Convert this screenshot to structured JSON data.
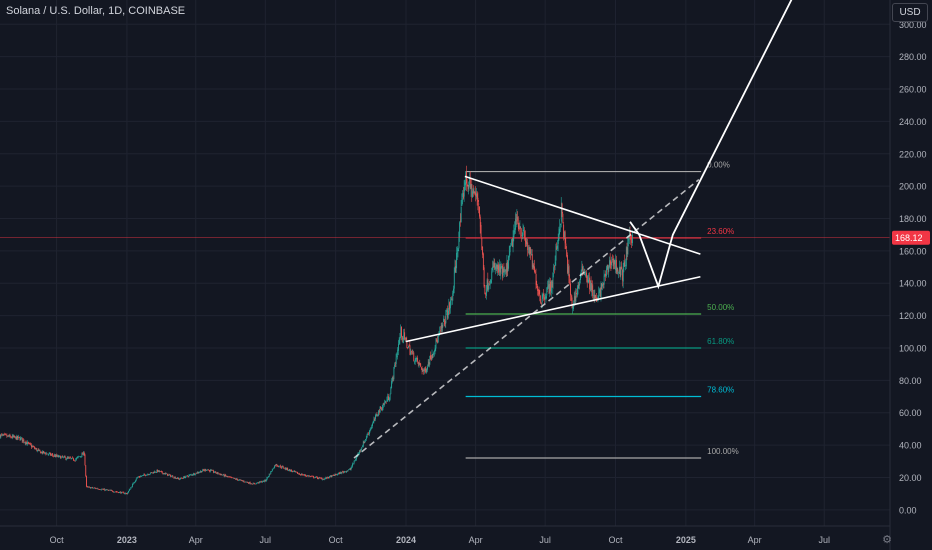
{
  "header": {
    "symbol": "Solana / U.S. Dollar, 1D, COINBASE",
    "currency": "USD"
  },
  "icons": {
    "scale_settings": "gear-icon"
  },
  "colors": {
    "background": "#131722",
    "grid": "#1f2330",
    "axis_text": "#b2b5be",
    "candle_up": "#26a69a",
    "candle_down": "#ef5350",
    "price_line": "#f23645",
    "drawing": "#ffffff"
  },
  "chart_data": {
    "type": "candlestick",
    "y_axis": {
      "ticks": [
        "0.00",
        "20.00",
        "40.00",
        "60.00",
        "80.00",
        "100.00",
        "120.00",
        "140.00",
        "160.00",
        "180.00",
        "200.00",
        "220.00",
        "240.00",
        "260.00",
        "280.00",
        "300.00"
      ],
      "tick_values": [
        0,
        20,
        40,
        60,
        80,
        100,
        120,
        140,
        160,
        180,
        200,
        220,
        240,
        260,
        280,
        300
      ],
      "range": [
        -10,
        315
      ]
    },
    "x_axis": {
      "ticks": [
        "Oct",
        "2023",
        "Apr",
        "Jul",
        "Oct",
        "2024",
        "Apr",
        "Jul",
        "Oct",
        "2025",
        "Apr",
        "Jul"
      ],
      "tick_dates": [
        "2022-10-01",
        "2023-01-01",
        "2023-04-01",
        "2023-07-01",
        "2023-10-01",
        "2024-01-01",
        "2024-04-01",
        "2024-07-01",
        "2024-10-01",
        "2025-01-01",
        "2025-04-01",
        "2025-07-01"
      ],
      "range": [
        "2022-07-19",
        "2025-09-25"
      ]
    },
    "current_price": {
      "value": 168.12,
      "label": "168.12"
    },
    "price_path": [
      [
        "2022-07-19",
        46
      ],
      [
        "2022-08-15",
        44
      ],
      [
        "2022-09-08",
        36
      ],
      [
        "2022-10-01",
        33
      ],
      [
        "2022-10-25",
        31
      ],
      [
        "2022-11-06",
        35
      ],
      [
        "2022-11-09",
        14
      ],
      [
        "2022-11-25",
        13
      ],
      [
        "2022-12-20",
        11
      ],
      [
        "2023-01-01",
        10
      ],
      [
        "2023-01-14",
        20
      ],
      [
        "2023-02-10",
        24
      ],
      [
        "2023-03-10",
        19
      ],
      [
        "2023-04-15",
        25
      ],
      [
        "2023-05-15",
        20
      ],
      [
        "2023-06-15",
        16
      ],
      [
        "2023-07-01",
        18
      ],
      [
        "2023-07-14",
        28
      ],
      [
        "2023-08-15",
        22
      ],
      [
        "2023-09-15",
        19
      ],
      [
        "2023-10-20",
        25
      ],
      [
        "2023-11-05",
        40
      ],
      [
        "2023-11-25",
        60
      ],
      [
        "2023-12-10",
        70
      ],
      [
        "2023-12-25",
        110
      ],
      [
        "2024-01-10",
        95
      ],
      [
        "2024-01-25",
        85
      ],
      [
        "2024-02-15",
        110
      ],
      [
        "2024-03-01",
        130
      ],
      [
        "2024-03-18",
        205
      ],
      [
        "2024-04-05",
        190
      ],
      [
        "2024-04-13",
        135
      ],
      [
        "2024-04-25",
        150
      ],
      [
        "2024-05-10",
        145
      ],
      [
        "2024-05-25",
        180
      ],
      [
        "2024-06-10",
        160
      ],
      [
        "2024-06-25",
        130
      ],
      [
        "2024-07-10",
        140
      ],
      [
        "2024-07-22",
        185
      ],
      [
        "2024-08-05",
        125
      ],
      [
        "2024-08-20",
        150
      ],
      [
        "2024-09-06",
        128
      ],
      [
        "2024-09-25",
        155
      ],
      [
        "2024-10-10",
        145
      ],
      [
        "2024-10-20",
        170
      ],
      [
        "2024-10-23",
        168.12
      ]
    ],
    "fibonacci": {
      "levels": [
        {
          "label": "0.00%",
          "price": 209,
          "color": "#a7a7a7"
        },
        {
          "label": "23.60%",
          "price": 168,
          "color": "#f23645"
        },
        {
          "label": "50.00%",
          "price": 121,
          "color": "#4caf50"
        },
        {
          "label": "61.80%",
          "price": 100,
          "color": "#089981"
        },
        {
          "label": "78.60%",
          "price": 70,
          "color": "#00bcd4"
        },
        {
          "label": "100.00%",
          "price": 32,
          "color": "#a7a7a7"
        }
      ],
      "start_date": "2024-03-19",
      "end_date": "2025-01-21"
    },
    "drawings": {
      "upper_trendline": [
        [
          "2024-03-18",
          206
        ],
        [
          "2025-01-20",
          158
        ]
      ],
      "lower_trendline": [
        [
          "2024-01-01",
          104
        ],
        [
          "2025-01-20",
          144
        ]
      ],
      "dashed_trendline": [
        [
          "2023-10-25",
          32
        ],
        [
          "2025-01-18",
          204
        ]
      ],
      "projection": [
        [
          "2024-10-20",
          178
        ],
        [
          "2024-11-01",
          170
        ],
        [
          "2024-11-26",
          138
        ],
        [
          "2024-12-15",
          170
        ],
        [
          "2025-06-20",
          345
        ]
      ]
    }
  }
}
